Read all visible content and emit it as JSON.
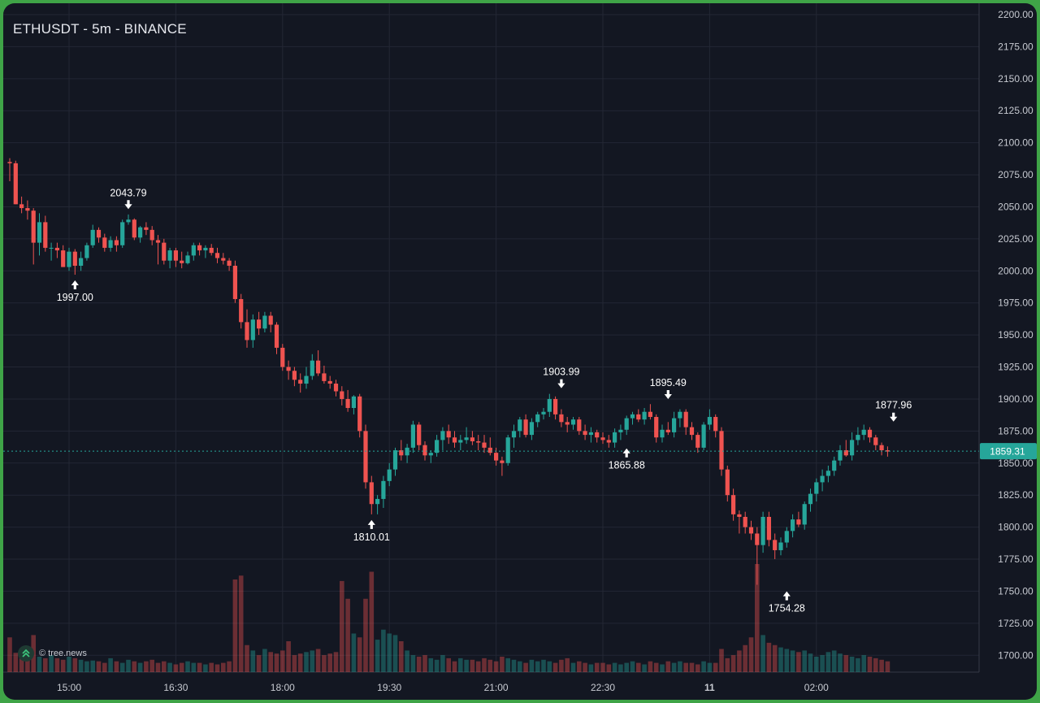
{
  "chart_data": {
    "type": "candlestick",
    "title": "ETHUSDT - 5m - BINANCE",
    "symbol": "ETHUSDT",
    "interval": "5m",
    "exchange": "BINANCE",
    "ylim": [
      1685,
      2205
    ],
    "y_ticks": [
      "2200.00",
      "2175.00",
      "2150.00",
      "2125.00",
      "2100.00",
      "2075.00",
      "2050.00",
      "2025.00",
      "2000.00",
      "1975.00",
      "1950.00",
      "1925.00",
      "1900.00",
      "1875.00",
      "1850.00",
      "1825.00",
      "1800.00",
      "1775.00",
      "1750.00",
      "1725.00",
      "1700.00"
    ],
    "x_ticks": [
      {
        "label": "15:00",
        "bar": 10,
        "bold": false
      },
      {
        "label": "16:30",
        "bar": 28,
        "bold": false
      },
      {
        "label": "18:00",
        "bar": 46,
        "bold": false
      },
      {
        "label": "19:30",
        "bar": 64,
        "bold": false
      },
      {
        "label": "21:00",
        "bar": 82,
        "bold": false
      },
      {
        "label": "22:30",
        "bar": 100,
        "bold": false
      },
      {
        "label": "11",
        "bar": 118,
        "bold": true
      },
      {
        "label": "02:00",
        "bar": 136,
        "bold": false
      }
    ],
    "current_price": {
      "value": 1859.31,
      "label": "1859.31"
    },
    "annotations": [
      {
        "label": "2043.79",
        "price": 2043.79,
        "bar": 20,
        "position": "above"
      },
      {
        "label": "1997.00",
        "price": 1997.0,
        "bar": 11,
        "position": "below"
      },
      {
        "label": "1810.01",
        "price": 1810.01,
        "bar": 61,
        "position": "below"
      },
      {
        "label": "1903.99",
        "price": 1903.99,
        "bar": 93,
        "position": "above"
      },
      {
        "label": "1865.88",
        "price": 1865.88,
        "bar": 104,
        "position": "below"
      },
      {
        "label": "1895.49",
        "price": 1895.49,
        "bar": 111,
        "position": "above"
      },
      {
        "label": "1754.28",
        "price": 1754.28,
        "bar": 131,
        "position": "below"
      },
      {
        "label": "1877.96",
        "price": 1877.96,
        "bar": 149,
        "position": "above"
      }
    ],
    "ohlc": [
      [
        2085,
        2088,
        2070,
        2084
      ],
      [
        2084,
        2086,
        2052,
        2052
      ],
      [
        2052,
        2058,
        2045,
        2049
      ],
      [
        2049,
        2055,
        2040,
        2047
      ],
      [
        2047,
        2049,
        2005,
        2022
      ],
      [
        2022,
        2045,
        2012,
        2038
      ],
      [
        2038,
        2043,
        2015,
        2018
      ],
      [
        2018,
        2022,
        2008,
        2018
      ],
      [
        2018,
        2022,
        2010,
        2016
      ],
      [
        2016,
        2020,
        2003,
        2003
      ],
      [
        2003,
        2018,
        2000,
        2015
      ],
      [
        2015,
        2017,
        1997,
        2004
      ],
      [
        2004,
        2015,
        2000,
        2010
      ],
      [
        2010,
        2022,
        2008,
        2020
      ],
      [
        2020,
        2036,
        2018,
        2032
      ],
      [
        2032,
        2034,
        2022,
        2026
      ],
      [
        2026,
        2029,
        2015,
        2018
      ],
      [
        2018,
        2027,
        2015,
        2024
      ],
      [
        2024,
        2027,
        2015,
        2020
      ],
      [
        2020,
        2040,
        2018,
        2038
      ],
      [
        2038,
        2044,
        2036,
        2040
      ],
      [
        2040,
        2041,
        2024,
        2026
      ],
      [
        2026,
        2035,
        2022,
        2034
      ],
      [
        2034,
        2038,
        2028,
        2032
      ],
      [
        2032,
        2035,
        2020,
        2024
      ],
      [
        2024,
        2028,
        2005,
        2022
      ],
      [
        2022,
        2025,
        2005,
        2008
      ],
      [
        2008,
        2018,
        2002,
        2016
      ],
      [
        2016,
        2018,
        2003,
        2008
      ],
      [
        2008,
        2015,
        2002,
        2006
      ],
      [
        2006,
        2015,
        2005,
        2012
      ],
      [
        2012,
        2022,
        2008,
        2020
      ],
      [
        2020,
        2022,
        2012,
        2016
      ],
      [
        2016,
        2020,
        2010,
        2018
      ],
      [
        2018,
        2021,
        2012,
        2014
      ],
      [
        2014,
        2018,
        2006,
        2010
      ],
      [
        2010,
        2014,
        2005,
        2008
      ],
      [
        2008,
        2010,
        2000,
        2004
      ],
      [
        2004,
        2008,
        1975,
        1978
      ],
      [
        1978,
        1982,
        1955,
        1960
      ],
      [
        1960,
        1970,
        1940,
        1946
      ],
      [
        1946,
        1966,
        1940,
        1962
      ],
      [
        1962,
        1968,
        1950,
        1955
      ],
      [
        1955,
        1968,
        1952,
        1965
      ],
      [
        1965,
        1968,
        1952,
        1958
      ],
      [
        1958,
        1960,
        1935,
        1940
      ],
      [
        1940,
        1943,
        1922,
        1925
      ],
      [
        1925,
        1930,
        1915,
        1922
      ],
      [
        1922,
        1925,
        1910,
        1915
      ],
      [
        1915,
        1920,
        1905,
        1912
      ],
      [
        1912,
        1925,
        1908,
        1918
      ],
      [
        1918,
        1935,
        1915,
        1930
      ],
      [
        1930,
        1938,
        1918,
        1920
      ],
      [
        1920,
        1926,
        1912,
        1914
      ],
      [
        1914,
        1918,
        1908,
        1912
      ],
      [
        1912,
        1915,
        1902,
        1906
      ],
      [
        1906,
        1910,
        1895,
        1900
      ],
      [
        1900,
        1907,
        1890,
        1893
      ],
      [
        1893,
        1903,
        1888,
        1902
      ],
      [
        1902,
        1904,
        1870,
        1875
      ],
      [
        1875,
        1880,
        1830,
        1835
      ],
      [
        1835,
        1840,
        1810,
        1818
      ],
      [
        1818,
        1825,
        1810,
        1822
      ],
      [
        1822,
        1840,
        1815,
        1836
      ],
      [
        1836,
        1850,
        1832,
        1845
      ],
      [
        1845,
        1862,
        1840,
        1860
      ],
      [
        1860,
        1868,
        1852,
        1856
      ],
      [
        1856,
        1865,
        1850,
        1862
      ],
      [
        1862,
        1883,
        1858,
        1880
      ],
      [
        1880,
        1882,
        1860,
        1864
      ],
      [
        1864,
        1867,
        1852,
        1856
      ],
      [
        1856,
        1860,
        1850,
        1858
      ],
      [
        1858,
        1872,
        1855,
        1868
      ],
      [
        1868,
        1878,
        1860,
        1875
      ],
      [
        1875,
        1880,
        1865,
        1870
      ],
      [
        1870,
        1875,
        1862,
        1866
      ],
      [
        1866,
        1872,
        1860,
        1868
      ],
      [
        1868,
        1878,
        1865,
        1870
      ],
      [
        1870,
        1875,
        1864,
        1867
      ],
      [
        1867,
        1872,
        1860,
        1866
      ],
      [
        1866,
        1872,
        1858,
        1862
      ],
      [
        1862,
        1870,
        1856,
        1858
      ],
      [
        1858,
        1862,
        1848,
        1852
      ],
      [
        1852,
        1855,
        1840,
        1850
      ],
      [
        1850,
        1872,
        1848,
        1870
      ],
      [
        1870,
        1880,
        1862,
        1875
      ],
      [
        1875,
        1886,
        1870,
        1884
      ],
      [
        1884,
        1888,
        1870,
        1872
      ],
      [
        1872,
        1885,
        1868,
        1882
      ],
      [
        1882,
        1890,
        1878,
        1888
      ],
      [
        1888,
        1893,
        1884,
        1890
      ],
      [
        1890,
        1904,
        1886,
        1900
      ],
      [
        1900,
        1902,
        1884,
        1888
      ],
      [
        1888,
        1892,
        1878,
        1882
      ],
      [
        1882,
        1886,
        1874,
        1880
      ],
      [
        1880,
        1886,
        1876,
        1884
      ],
      [
        1884,
        1886,
        1872,
        1875
      ],
      [
        1875,
        1880,
        1868,
        1872
      ],
      [
        1872,
        1878,
        1866,
        1874
      ],
      [
        1874,
        1876,
        1866,
        1870
      ],
      [
        1870,
        1874,
        1865,
        1868
      ],
      [
        1868,
        1872,
        1862,
        1866
      ],
      [
        1866,
        1877,
        1862,
        1874
      ],
      [
        1874,
        1880,
        1868,
        1876
      ],
      [
        1876,
        1887,
        1872,
        1885
      ],
      [
        1885,
        1890,
        1880,
        1888
      ],
      [
        1888,
        1892,
        1882,
        1884
      ],
      [
        1884,
        1893,
        1880,
        1890
      ],
      [
        1890,
        1896,
        1884,
        1886
      ],
      [
        1886,
        1888,
        1866,
        1870
      ],
      [
        1870,
        1880,
        1866,
        1876
      ],
      [
        1876,
        1882,
        1872,
        1874
      ],
      [
        1874,
        1890,
        1870,
        1885
      ],
      [
        1885,
        1892,
        1878,
        1890
      ],
      [
        1890,
        1892,
        1872,
        1878
      ],
      [
        1878,
        1882,
        1868,
        1872
      ],
      [
        1872,
        1874,
        1858,
        1862
      ],
      [
        1862,
        1882,
        1860,
        1880
      ],
      [
        1880,
        1892,
        1876,
        1886
      ],
      [
        1886,
        1888,
        1870,
        1875
      ],
      [
        1875,
        1878,
        1840,
        1845
      ],
      [
        1845,
        1848,
        1820,
        1825
      ],
      [
        1825,
        1830,
        1805,
        1810
      ],
      [
        1810,
        1813,
        1795,
        1808
      ],
      [
        1808,
        1812,
        1795,
        1800
      ],
      [
        1800,
        1805,
        1790,
        1795
      ],
      [
        1795,
        1800,
        1755,
        1786
      ],
      [
        1786,
        1812,
        1780,
        1808
      ],
      [
        1808,
        1812,
        1785,
        1790
      ],
      [
        1790,
        1795,
        1775,
        1782
      ],
      [
        1782,
        1792,
        1778,
        1788
      ],
      [
        1788,
        1800,
        1784,
        1797
      ],
      [
        1797,
        1810,
        1792,
        1806
      ],
      [
        1806,
        1812,
        1800,
        1802
      ],
      [
        1802,
        1820,
        1798,
        1818
      ],
      [
        1818,
        1830,
        1812,
        1826
      ],
      [
        1826,
        1838,
        1820,
        1835
      ],
      [
        1835,
        1845,
        1828,
        1840
      ],
      [
        1840,
        1848,
        1835,
        1844
      ],
      [
        1844,
        1855,
        1840,
        1852
      ],
      [
        1852,
        1864,
        1848,
        1860
      ],
      [
        1860,
        1868,
        1855,
        1856
      ],
      [
        1856,
        1874,
        1852,
        1868
      ],
      [
        1868,
        1878,
        1864,
        1872
      ],
      [
        1872,
        1880,
        1868,
        1876
      ],
      [
        1876,
        1878,
        1866,
        1870
      ],
      [
        1870,
        1872,
        1860,
        1864
      ],
      [
        1864,
        1866,
        1856,
        1860
      ],
      [
        1860,
        1863,
        1855,
        1859
      ]
    ],
    "volume": [
      45,
      25,
      22,
      20,
      48,
      20,
      18,
      22,
      18,
      16,
      20,
      18,
      16,
      14,
      15,
      14,
      12,
      18,
      14,
      12,
      16,
      14,
      12,
      14,
      16,
      12,
      14,
      12,
      10,
      12,
      14,
      12,
      12,
      10,
      12,
      10,
      12,
      14,
      120,
      125,
      35,
      28,
      22,
      30,
      26,
      24,
      28,
      40,
      22,
      24,
      26,
      28,
      30,
      22,
      24,
      26,
      118,
      95,
      50,
      45,
      95,
      130,
      42,
      55,
      50,
      48,
      40,
      28,
      22,
      20,
      22,
      18,
      16,
      22,
      18,
      14,
      18,
      16,
      16,
      14,
      18,
      16,
      14,
      20,
      18,
      16,
      14,
      12,
      16,
      14,
      16,
      14,
      12,
      16,
      18,
      12,
      14,
      12,
      10,
      12,
      12,
      10,
      12,
      10,
      12,
      14,
      12,
      10,
      14,
      12,
      10,
      14,
      12,
      14,
      12,
      12,
      10,
      14,
      12,
      12,
      30,
      18,
      22,
      28,
      35,
      45,
      140,
      48,
      38,
      35,
      32,
      30,
      28,
      26,
      28,
      24,
      20,
      22,
      26,
      28,
      24,
      22,
      20,
      18,
      22,
      20,
      18,
      16,
      14,
      12,
      12,
      10,
      10
    ]
  }
}
